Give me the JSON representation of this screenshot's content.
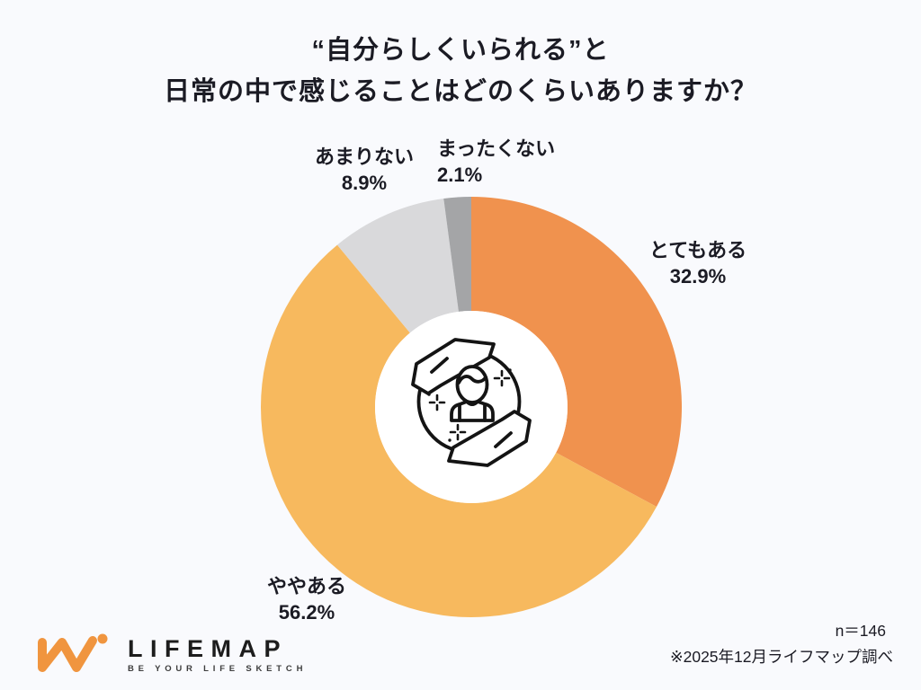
{
  "page": {
    "title_line1": "“自分らしくいられる”と",
    "title_line2": "日常の中で感じることはどのくらいありますか？"
  },
  "chart_data": {
    "type": "pie",
    "subtype": "donut",
    "title": "“自分らしくいられる”と日常の中で感じることはどのくらいありますか？",
    "categories": [
      "とてもある",
      "ややある",
      "あまりない",
      "まったくない"
    ],
    "values": [
      32.9,
      56.2,
      8.9,
      2.1
    ],
    "unit": "%",
    "start_angle_deg": 0,
    "direction": "clockwise",
    "inner_radius_ratio": 0.46,
    "legend": "none",
    "slices": [
      {
        "label": "とてもある",
        "value": 32.9,
        "pct_label": "32.9%",
        "color": "#F0924E"
      },
      {
        "label": "ややある",
        "value": 56.2,
        "pct_label": "56.2%",
        "color": "#F7B95E"
      },
      {
        "label": "あまりない",
        "value": 8.9,
        "pct_label": "8.9%",
        "color": "#D9D9DB"
      },
      {
        "label": "まったくない",
        "value": 2.1,
        "pct_label": "2.1%",
        "color": "#A4A5A7"
      }
    ],
    "center_icon": "person-in-caring-hands-icon"
  },
  "icons": {
    "center": "person-in-caring-hands-icon",
    "logo": "lifemap-logo-mark"
  },
  "footer": {
    "logo_name": "LIFEMAP",
    "logo_tagline": "BE YOUR LIFE SKETCH",
    "sample_size": "n＝146",
    "source_note": "※2025年12月ライフマップ調べ"
  },
  "colors": {
    "background": "#F9FAFD",
    "text": "#1B1B24",
    "donut_hole": "#FFFFFF",
    "logo_orange": "#F0953F"
  }
}
